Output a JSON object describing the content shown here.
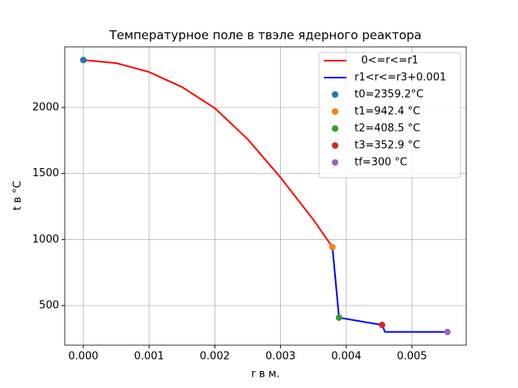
{
  "chart_data": {
    "type": "line",
    "title": "Температурное поле в твэле ядерного реактора",
    "x_label": "r в м.",
    "y_label": "t в °C",
    "xlim": [
      -0.000283,
      0.005825
    ],
    "ylim": [
      200,
      2459
    ],
    "xticks": [
      {
        "value": 0,
        "label": "0.000"
      },
      {
        "value": 0.001,
        "label": "0.001"
      },
      {
        "value": 0.002,
        "label": "0.002"
      },
      {
        "value": 0.003,
        "label": "0.003"
      },
      {
        "value": 0.004,
        "label": "0.004"
      },
      {
        "value": 0.005,
        "label": "0.005"
      }
    ],
    "yticks": [
      500,
      1000,
      1500,
      2000
    ],
    "grid": true,
    "legend": "upper right",
    "series": [
      {
        "name": "  0<=r<=r1",
        "color": "#ff0000",
        "style": "line",
        "x": [
          0,
          0.0005,
          0.001,
          0.0015,
          0.002,
          0.0025,
          0.003,
          0.0035,
          0.00379
        ],
        "values": [
          2359.2,
          2336,
          2269,
          2155,
          1995,
          1760,
          1470,
          1150,
          942.4
        ]
      },
      {
        "name": "r1<r<=r3+0.001",
        "color": "#0000ff",
        "style": "line",
        "x": [
          0.00379,
          0.00389,
          0.004545,
          0.00459,
          0.00554
        ],
        "values": [
          942.4,
          408.5,
          352.9,
          300,
          300
        ]
      },
      {
        "name": "t0=2359.2°C",
        "color": "#1f77b4",
        "style": "marker",
        "x": [
          0
        ],
        "values": [
          2359.2
        ]
      },
      {
        "name": "t1=942.4 °C",
        "color": "#ff7f0e",
        "style": "marker",
        "x": [
          0.00379
        ],
        "values": [
          942.4
        ]
      },
      {
        "name": "t2=408.5 °C",
        "color": "#2ca02c",
        "style": "marker",
        "x": [
          0.00389
        ],
        "values": [
          408.5
        ]
      },
      {
        "name": "t3=352.9 °C",
        "color": "#d62728",
        "style": "marker",
        "x": [
          0.004545
        ],
        "values": [
          352.9
        ]
      },
      {
        "name": "tf=300 °C",
        "color": "#9467bd",
        "style": "marker",
        "x": [
          0.00554
        ],
        "values": [
          300
        ]
      }
    ]
  }
}
